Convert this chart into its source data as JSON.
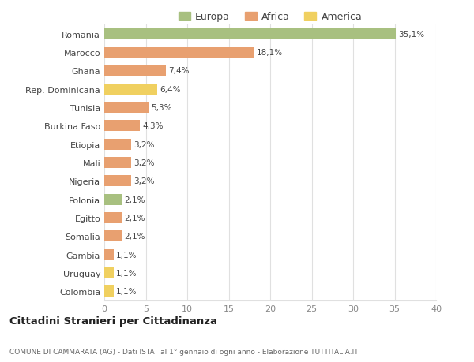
{
  "categories": [
    "Romania",
    "Marocco",
    "Ghana",
    "Rep. Dominicana",
    "Tunisia",
    "Burkina Faso",
    "Etiopia",
    "Mali",
    "Nigeria",
    "Polonia",
    "Egitto",
    "Somalia",
    "Gambia",
    "Uruguay",
    "Colombia"
  ],
  "values": [
    35.1,
    18.1,
    7.4,
    6.4,
    5.3,
    4.3,
    3.2,
    3.2,
    3.2,
    2.1,
    2.1,
    2.1,
    1.1,
    1.1,
    1.1
  ],
  "labels": [
    "35,1%",
    "18,1%",
    "7,4%",
    "6,4%",
    "5,3%",
    "4,3%",
    "3,2%",
    "3,2%",
    "3,2%",
    "2,1%",
    "2,1%",
    "2,1%",
    "1,1%",
    "1,1%",
    "1,1%"
  ],
  "continents": [
    "Europa",
    "Africa",
    "Africa",
    "America",
    "Africa",
    "Africa",
    "Africa",
    "Africa",
    "Africa",
    "Europa",
    "Africa",
    "Africa",
    "Africa",
    "America",
    "America"
  ],
  "colors": {
    "Europa": "#a8c080",
    "Africa": "#e8a070",
    "America": "#f0d060"
  },
  "legend_order": [
    "Europa",
    "Africa",
    "America"
  ],
  "title": "Cittadini Stranieri per Cittadinanza",
  "subtitle": "COMUNE DI CAMMARATA (AG) - Dati ISTAT al 1° gennaio di ogni anno - Elaborazione TUTTITALIA.IT",
  "xlim": [
    0,
    40
  ],
  "xticks": [
    0,
    5,
    10,
    15,
    20,
    25,
    30,
    35,
    40
  ],
  "bg_color": "#ffffff",
  "grid_color": "#e0e0e0",
  "bar_height": 0.6
}
